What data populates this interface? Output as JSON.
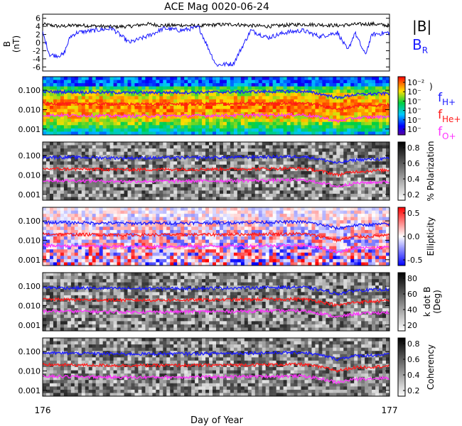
{
  "title": "ACE Mag 0020-06-24",
  "xlabel": "Day of Year",
  "x_ticks": [
    "176",
    "177"
  ],
  "colors": {
    "black": "#000000",
    "blue": "#1a1aff",
    "red": "#ff1a1a",
    "magenta": "#ff33ff"
  },
  "legend": {
    "b_total": "|B|",
    "b_r_main": "B",
    "b_r_sub": "R",
    "fh_main": "f",
    "fh_sub": "H+",
    "fhe_main": "f",
    "fhe_sub": "He+",
    "fo_main": "f",
    "fo_sub": "O+"
  },
  "panel1": {
    "ylabel_main": "B",
    "ylabel_unit": "(nT)",
    "yticks": [
      "6",
      "4",
      "2",
      "0",
      "-2",
      "-4",
      "-6"
    ]
  },
  "freq_ticks": [
    "0.100",
    "0.010",
    "0.001"
  ],
  "cbar_spectral": {
    "ticks": [
      "10⁻²",
      "10⁻",
      "10⁻",
      "10⁻",
      "10⁻",
      "10⁻"
    ],
    "paren": ")"
  },
  "cbar_polarization": {
    "label": "% Polarization",
    "ticks": [
      "0.8",
      "0.6",
      "0.4",
      "0.2"
    ]
  },
  "cbar_ellipticity": {
    "label": "Ellipticity",
    "ticks": [
      "0.5",
      "0.0",
      "-0.5"
    ]
  },
  "cbar_kdotb": {
    "label_main": "k dot B",
    "label_unit": "(Deg)",
    "ticks": [
      "80",
      "60",
      "40",
      "20"
    ]
  },
  "cbar_coherency": {
    "label": "Coherency",
    "ticks": [
      "0.8",
      "0.6",
      "0.4",
      "0.2"
    ]
  },
  "chart_data": [
    {
      "type": "line",
      "name": "magnetic-field",
      "xlim": [
        176,
        177
      ],
      "ylim": [
        -7,
        7
      ],
      "series": [
        {
          "name": "|B|",
          "color": "#000000",
          "x": [
            176.0,
            176.05,
            176.1,
            176.15,
            176.2,
            176.25,
            176.3,
            176.35,
            176.4,
            176.45,
            176.5,
            176.55,
            176.6,
            176.65,
            176.7,
            176.75,
            176.8,
            176.85,
            176.9,
            176.95,
            177.0
          ],
          "y": [
            4.5,
            4.0,
            4.3,
            4.1,
            3.9,
            4.0,
            4.6,
            4.2,
            4.3,
            4.1,
            4.4,
            4.5,
            4.2,
            4.0,
            4.3,
            4.5,
            4.4,
            4.2,
            4.5,
            4.6,
            4.2
          ]
        },
        {
          "name": "B_R",
          "color": "#1a1aff",
          "x": [
            176.0,
            176.02,
            176.04,
            176.06,
            176.08,
            176.1,
            176.15,
            176.2,
            176.25,
            176.3,
            176.35,
            176.4,
            176.45,
            176.5,
            176.55,
            176.6,
            176.65,
            176.7,
            176.75,
            176.8,
            176.85,
            176.88,
            176.9,
            176.93,
            176.95,
            177.0
          ],
          "y": [
            2.5,
            -3.0,
            -3.2,
            -3.0,
            1.5,
            2.5,
            3.0,
            3.5,
            0.0,
            1.5,
            3.5,
            3.0,
            3.8,
            -5.5,
            -5.2,
            3.0,
            1.2,
            2.5,
            3.0,
            1.5,
            2.5,
            -2.0,
            2.5,
            -3.0,
            2.0,
            2.5
          ]
        }
      ]
    },
    {
      "type": "heatmap",
      "name": "spectral-power",
      "xlim": [
        176,
        177
      ],
      "y_scale": "log",
      "ylim": [
        0.0005,
        0.5
      ],
      "series": [
        {
          "name": "f_H+",
          "color": "#1a1aff",
          "x": [
            176.0,
            176.25,
            176.5,
            176.75,
            176.85,
            176.9,
            177.0
          ],
          "y": [
            0.085,
            0.075,
            0.08,
            0.09,
            0.04,
            0.06,
            0.07
          ]
        },
        {
          "name": "f_He+",
          "color": "#ff1a1a",
          "x": [
            176.0,
            176.25,
            176.5,
            176.75,
            176.85,
            176.9,
            177.0
          ],
          "y": [
            0.021,
            0.019,
            0.02,
            0.022,
            0.01,
            0.015,
            0.018
          ]
        },
        {
          "name": "f_O+",
          "color": "#ff33ff",
          "x": [
            176.0,
            176.25,
            176.5,
            176.75,
            176.85,
            176.9,
            177.0
          ],
          "y": [
            0.0053,
            0.0047,
            0.005,
            0.0055,
            0.0025,
            0.0038,
            0.0045
          ]
        }
      ]
    }
  ]
}
